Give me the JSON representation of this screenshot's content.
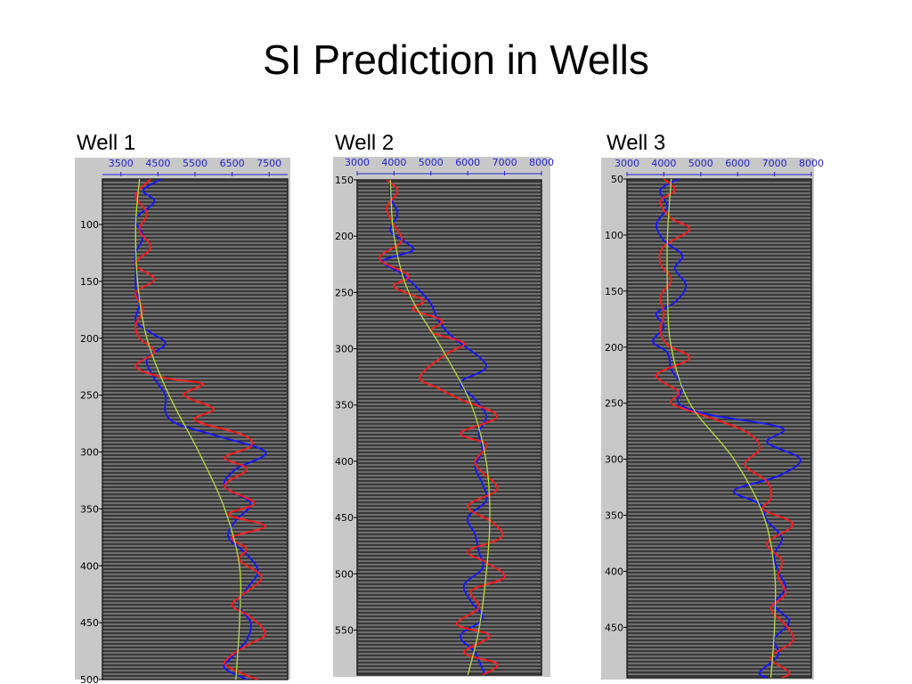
{
  "title": "SI Prediction in Wells",
  "colors": {
    "panel_bg": "#c8c8c8",
    "plot_bg": "#6e6e6e",
    "trace_line": "#1a1a1a",
    "axis_text": "#2222cc",
    "blue_series": "#1515ff",
    "red_series": "#ff1a1a",
    "trend_series": "#b4dc3c"
  },
  "chart_data": [
    {
      "type": "line",
      "label": "Well 1",
      "x_ticks": [
        3500,
        4500,
        5500,
        6500,
        7500
      ],
      "xlim": [
        3000,
        8000
      ],
      "y_ticks": [
        100,
        150,
        200,
        250,
        300,
        350,
        400,
        450,
        500
      ],
      "ylim": [
        60,
        500
      ],
      "y_inverted": true,
      "series": [
        {
          "color": "blue",
          "points": [
            [
              4600,
              60
            ],
            [
              4100,
              70
            ],
            [
              4400,
              80
            ],
            [
              3900,
              95
            ],
            [
              4100,
              110
            ],
            [
              3900,
              125
            ],
            [
              3900,
              140
            ],
            [
              3900,
              155
            ],
            [
              4000,
              170
            ],
            [
              3900,
              185
            ],
            [
              4300,
              195
            ],
            [
              4700,
              205
            ],
            [
              4200,
              218
            ],
            [
              4400,
              235
            ],
            [
              4700,
              250
            ],
            [
              4700,
              265
            ],
            [
              5000,
              275
            ],
            [
              6000,
              285
            ],
            [
              7400,
              300
            ],
            [
              6600,
              315
            ],
            [
              6300,
              330
            ],
            [
              7000,
              345
            ],
            [
              6600,
              360
            ],
            [
              6400,
              375
            ],
            [
              6900,
              390
            ],
            [
              7200,
              405
            ],
            [
              6900,
              420
            ],
            [
              6700,
              435
            ],
            [
              7000,
              450
            ],
            [
              6900,
              465
            ],
            [
              6500,
              480
            ],
            [
              6300,
              490
            ],
            [
              6900,
              500
            ]
          ]
        },
        {
          "color": "red",
          "points": [
            [
              4300,
              60
            ],
            [
              3900,
              75
            ],
            [
              4200,
              90
            ],
            [
              4000,
              105
            ],
            [
              4300,
              120
            ],
            [
              3900,
              135
            ],
            [
              4400,
              148
            ],
            [
              3900,
              160
            ],
            [
              4100,
              175
            ],
            [
              3900,
              188
            ],
            [
              4000,
              200
            ],
            [
              4400,
              212
            ],
            [
              3900,
              225
            ],
            [
              4700,
              235
            ],
            [
              5700,
              240
            ],
            [
              5200,
              250
            ],
            [
              6000,
              262
            ],
            [
              5500,
              272
            ],
            [
              6800,
              285
            ],
            [
              7000,
              295
            ],
            [
              6300,
              305
            ],
            [
              6900,
              315
            ],
            [
              6300,
              330
            ],
            [
              7100,
              345
            ],
            [
              6400,
              355
            ],
            [
              7400,
              365
            ],
            [
              6500,
              375
            ],
            [
              6900,
              385
            ],
            [
              6700,
              395
            ],
            [
              7300,
              410
            ],
            [
              6800,
              425
            ],
            [
              6500,
              435
            ],
            [
              7000,
              445
            ],
            [
              7400,
              460
            ],
            [
              6900,
              470
            ],
            [
              6300,
              485
            ],
            [
              6800,
              495
            ],
            [
              7200,
              500
            ]
          ]
        },
        {
          "color": "trend",
          "points": [
            [
              4000,
              60
            ],
            [
              3900,
              100
            ],
            [
              3950,
              150
            ],
            [
              4200,
              200
            ],
            [
              4800,
              250
            ],
            [
              5600,
              300
            ],
            [
              6300,
              350
            ],
            [
              6700,
              400
            ],
            [
              6700,
              450
            ],
            [
              6600,
              500
            ]
          ]
        }
      ]
    },
    {
      "type": "line",
      "label": "Well 2",
      "x_ticks": [
        3000,
        4000,
        5000,
        6000,
        7000,
        8000
      ],
      "xlim": [
        3000,
        8000
      ],
      "y_ticks": [
        150,
        200,
        250,
        300,
        350,
        400,
        450,
        500,
        550
      ],
      "ylim": [
        150,
        590
      ],
      "y_inverted": true,
      "series": [
        {
          "color": "blue",
          "points": [
            [
              3900,
              150
            ],
            [
              3900,
              165
            ],
            [
              4100,
              180
            ],
            [
              3900,
              195
            ],
            [
              4300,
              205
            ],
            [
              4500,
              213
            ],
            [
              3700,
              222
            ],
            [
              4200,
              233
            ],
            [
              4600,
              245
            ],
            [
              5000,
              260
            ],
            [
              5200,
              275
            ],
            [
              5600,
              290
            ],
            [
              6500,
              315
            ],
            [
              5800,
              330
            ],
            [
              6200,
              345
            ],
            [
              6500,
              360
            ],
            [
              6300,
              375
            ],
            [
              6400,
              390
            ],
            [
              6200,
              405
            ],
            [
              6400,
              420
            ],
            [
              6500,
              435
            ],
            [
              6000,
              450
            ],
            [
              6200,
              465
            ],
            [
              6300,
              480
            ],
            [
              6400,
              495
            ],
            [
              5900,
              510
            ],
            [
              6100,
              525
            ],
            [
              6400,
              540
            ],
            [
              5800,
              555
            ],
            [
              6200,
              570
            ],
            [
              6400,
              585
            ],
            [
              6500,
              590
            ]
          ]
        },
        {
          "color": "red",
          "points": [
            [
              3800,
              150
            ],
            [
              4100,
              160
            ],
            [
              3800,
              175
            ],
            [
              4000,
              190
            ],
            [
              4200,
              205
            ],
            [
              3600,
              220
            ],
            [
              4400,
              235
            ],
            [
              4000,
              245
            ],
            [
              4800,
              257
            ],
            [
              4500,
              265
            ],
            [
              5300,
              275
            ],
            [
              5000,
              285
            ],
            [
              5900,
              295
            ],
            [
              5400,
              305
            ],
            [
              4700,
              325
            ],
            [
              5200,
              335
            ],
            [
              5800,
              345
            ],
            [
              6800,
              360
            ],
            [
              5800,
              375
            ],
            [
              6500,
              385
            ],
            [
              6200,
              400
            ],
            [
              6400,
              410
            ],
            [
              6800,
              425
            ],
            [
              6000,
              440
            ],
            [
              6700,
              455
            ],
            [
              6900,
              468
            ],
            [
              6000,
              480
            ],
            [
              6500,
              490
            ],
            [
              7000,
              503
            ],
            [
              6100,
              515
            ],
            [
              6300,
              530
            ],
            [
              5700,
              545
            ],
            [
              6600,
              555
            ],
            [
              5900,
              570
            ],
            [
              6800,
              580
            ],
            [
              6400,
              590
            ]
          ]
        },
        {
          "color": "trend",
          "points": [
            [
              3900,
              150
            ],
            [
              4000,
              200
            ],
            [
              4400,
              250
            ],
            [
              5300,
              300
            ],
            [
              6100,
              350
            ],
            [
              6500,
              400
            ],
            [
              6600,
              450
            ],
            [
              6500,
              500
            ],
            [
              6300,
              550
            ],
            [
              6000,
              590
            ]
          ]
        }
      ]
    },
    {
      "type": "line",
      "label": "Well 3",
      "x_ticks": [
        3000,
        4000,
        5000,
        6000,
        7000,
        8000
      ],
      "xlim": [
        3000,
        8000
      ],
      "y_ticks": [
        50,
        100,
        150,
        200,
        250,
        300,
        350,
        400,
        450
      ],
      "ylim": [
        50,
        495
      ],
      "y_inverted": true,
      "series": [
        {
          "color": "blue",
          "points": [
            [
              4400,
              50
            ],
            [
              3900,
              60
            ],
            [
              4100,
              75
            ],
            [
              3800,
              90
            ],
            [
              4000,
              105
            ],
            [
              4500,
              118
            ],
            [
              4300,
              130
            ],
            [
              4600,
              145
            ],
            [
              4300,
              160
            ],
            [
              3800,
              170
            ],
            [
              4000,
              182
            ],
            [
              3700,
              195
            ],
            [
              4100,
              205
            ],
            [
              4200,
              220
            ],
            [
              4500,
              235
            ],
            [
              4400,
              250
            ],
            [
              5200,
              260
            ],
            [
              7200,
              272
            ],
            [
              6800,
              285
            ],
            [
              7700,
              300
            ],
            [
              7100,
              315
            ],
            [
              5900,
              328
            ],
            [
              6600,
              340
            ],
            [
              6800,
              355
            ],
            [
              7200,
              370
            ],
            [
              7000,
              385
            ],
            [
              7100,
              400
            ],
            [
              7300,
              415
            ],
            [
              7000,
              430
            ],
            [
              7400,
              445
            ],
            [
              7000,
              460
            ],
            [
              7100,
              475
            ],
            [
              6600,
              490
            ],
            [
              6800,
              495
            ]
          ]
        },
        {
          "color": "red",
          "points": [
            [
              4000,
              50
            ],
            [
              4300,
              60
            ],
            [
              3900,
              70
            ],
            [
              4200,
              85
            ],
            [
              4700,
              95
            ],
            [
              4000,
              110
            ],
            [
              3900,
              125
            ],
            [
              4200,
              140
            ],
            [
              3900,
              155
            ],
            [
              4000,
              170
            ],
            [
              3900,
              185
            ],
            [
              4100,
              198
            ],
            [
              4700,
              210
            ],
            [
              3800,
              225
            ],
            [
              4400,
              240
            ],
            [
              4200,
              250
            ],
            [
              5000,
              260
            ],
            [
              6200,
              275
            ],
            [
              6600,
              290
            ],
            [
              6200,
              305
            ],
            [
              6800,
              320
            ],
            [
              6900,
              335
            ],
            [
              6700,
              345
            ],
            [
              7500,
              358
            ],
            [
              6800,
              375
            ],
            [
              7200,
              390
            ],
            [
              7100,
              405
            ],
            [
              7300,
              420
            ],
            [
              6900,
              433
            ],
            [
              7300,
              448
            ],
            [
              7500,
              462
            ],
            [
              6900,
              477
            ],
            [
              7400,
              490
            ],
            [
              7200,
              495
            ]
          ]
        },
        {
          "color": "trend",
          "points": [
            [
              4200,
              50
            ],
            [
              4100,
              100
            ],
            [
              4100,
              150
            ],
            [
              4200,
              200
            ],
            [
              4700,
              250
            ],
            [
              5900,
              300
            ],
            [
              6700,
              350
            ],
            [
              7000,
              400
            ],
            [
              7000,
              450
            ],
            [
              6900,
              495
            ]
          ]
        }
      ]
    }
  ]
}
